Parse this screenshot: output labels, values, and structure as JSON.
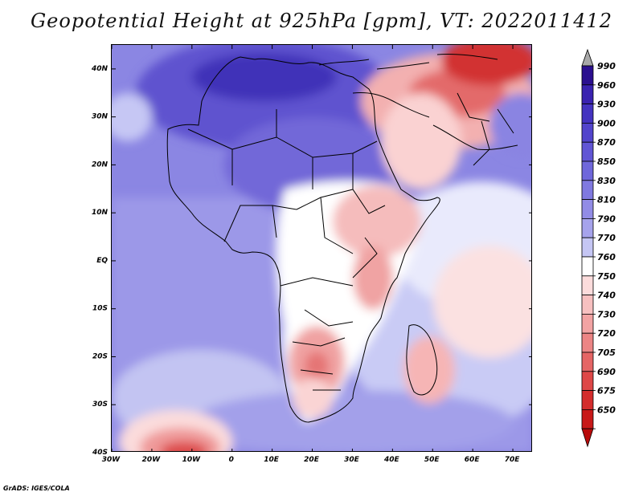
{
  "title": "Geopotential Height at 925hPa [gpm], VT: 2022011412",
  "credit": "GrADS: IGES/COLA",
  "map": {
    "lon_range": [
      -30,
      75
    ],
    "lat_range": [
      -40,
      45
    ],
    "lon_ticks": [
      "30W",
      "20W",
      "10W",
      "0",
      "10E",
      "20E",
      "30E",
      "40E",
      "50E",
      "60E",
      "70E"
    ],
    "lat_ticks": [
      "40N",
      "30N",
      "20N",
      "10N",
      "EQ",
      "10S",
      "20S",
      "30S",
      "40S"
    ]
  },
  "colorbar": {
    "levels": [
      "990",
      "960",
      "930",
      "900",
      "870",
      "850",
      "830",
      "810",
      "790",
      "770",
      "760",
      "750",
      "740",
      "730",
      "720",
      "705",
      "690",
      "675",
      "650"
    ],
    "colors": [
      "#2b0f8f",
      "#3a22b0",
      "#4433c0",
      "#5244cc",
      "#6155d5",
      "#6f67db",
      "#8079e0",
      "#928ce6",
      "#a6a3ec",
      "#c5c6f4",
      "#ffffff",
      "#fcdcdc",
      "#f7c0c0",
      "#f2a3a3",
      "#ec8585",
      "#e56565",
      "#de4747",
      "#d42c2c",
      "#c81818",
      "#b80b0b"
    ],
    "top_arrow_color": "#a8a8a8",
    "bottom_arrow_color": "#b80b0b"
  }
}
